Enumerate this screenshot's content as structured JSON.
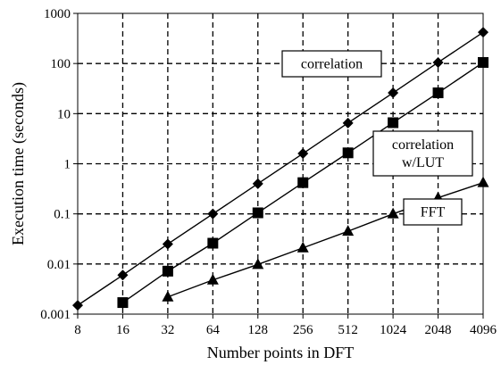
{
  "chart_data": {
    "type": "line",
    "title": "",
    "xlabel": "Number points in DFT",
    "ylabel": "Execution time (seconds)",
    "x_scale": "log2",
    "y_scale": "log10",
    "x": [
      8,
      16,
      32,
      64,
      128,
      256,
      512,
      1024,
      2048,
      4096
    ],
    "x_ticks": [
      "8",
      "16",
      "32",
      "64",
      "128",
      "256",
      "512",
      "1024",
      "2048",
      "4096"
    ],
    "y_ticks": [
      "0.001",
      "0.01",
      "0.1",
      "1",
      "10",
      "100",
      "1000"
    ],
    "xlim": [
      8,
      4096
    ],
    "ylim": [
      0.001,
      1000
    ],
    "grid": "dashed",
    "series": [
      {
        "name": "correlation",
        "marker": "diamond",
        "x": [
          8,
          16,
          32,
          64,
          128,
          256,
          512,
          1024,
          2048,
          4096
        ],
        "values": [
          0.0015,
          0.006,
          0.025,
          0.1,
          0.4,
          1.6,
          6.5,
          26,
          105,
          420
        ]
      },
      {
        "name": "correlation w/LUT",
        "marker": "square",
        "x": [
          16,
          32,
          64,
          128,
          256,
          512,
          1024,
          2048,
          4096
        ],
        "values": [
          0.0017,
          0.0072,
          0.026,
          0.105,
          0.42,
          1.65,
          6.6,
          26,
          105
        ]
      },
      {
        "name": "FFT",
        "marker": "triangle",
        "x": [
          32,
          64,
          128,
          256,
          512,
          1024,
          2048,
          4096
        ],
        "values": [
          0.0022,
          0.0048,
          0.0098,
          0.021,
          0.045,
          0.1,
          0.21,
          0.42
        ]
      }
    ],
    "callouts": [
      {
        "lines": [
          "correlation"
        ]
      },
      {
        "lines": [
          "correlation",
          "w/LUT"
        ]
      },
      {
        "lines": [
          "FFT"
        ]
      }
    ]
  }
}
